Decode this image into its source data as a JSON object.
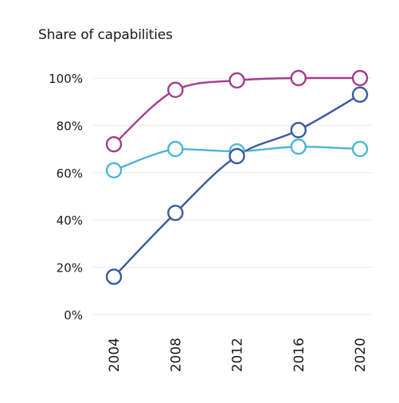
{
  "chart_data": {
    "type": "line",
    "title": "",
    "ylabel": "Share of capabilities",
    "xlabel": "",
    "x": [
      2004,
      2008,
      2012,
      2016,
      2020
    ],
    "x_tick_labels": [
      "2004",
      "2008",
      "2012",
      "2016",
      "2020"
    ],
    "y_tick_labels": [
      "0%",
      "20%",
      "40%",
      "60%",
      "80%",
      "100%"
    ],
    "ylim": [
      0,
      100
    ],
    "grid": true,
    "legend": "none",
    "series": [
      {
        "values": [
          72,
          95,
          99,
          100,
          100
        ],
        "color": "#a23d8f"
      },
      {
        "values": [
          61,
          70,
          69,
          71,
          70
        ],
        "color": "#4db6d4"
      },
      {
        "values": [
          16,
          43,
          67,
          78,
          93
        ],
        "color": "#3a5a9f"
      }
    ]
  }
}
